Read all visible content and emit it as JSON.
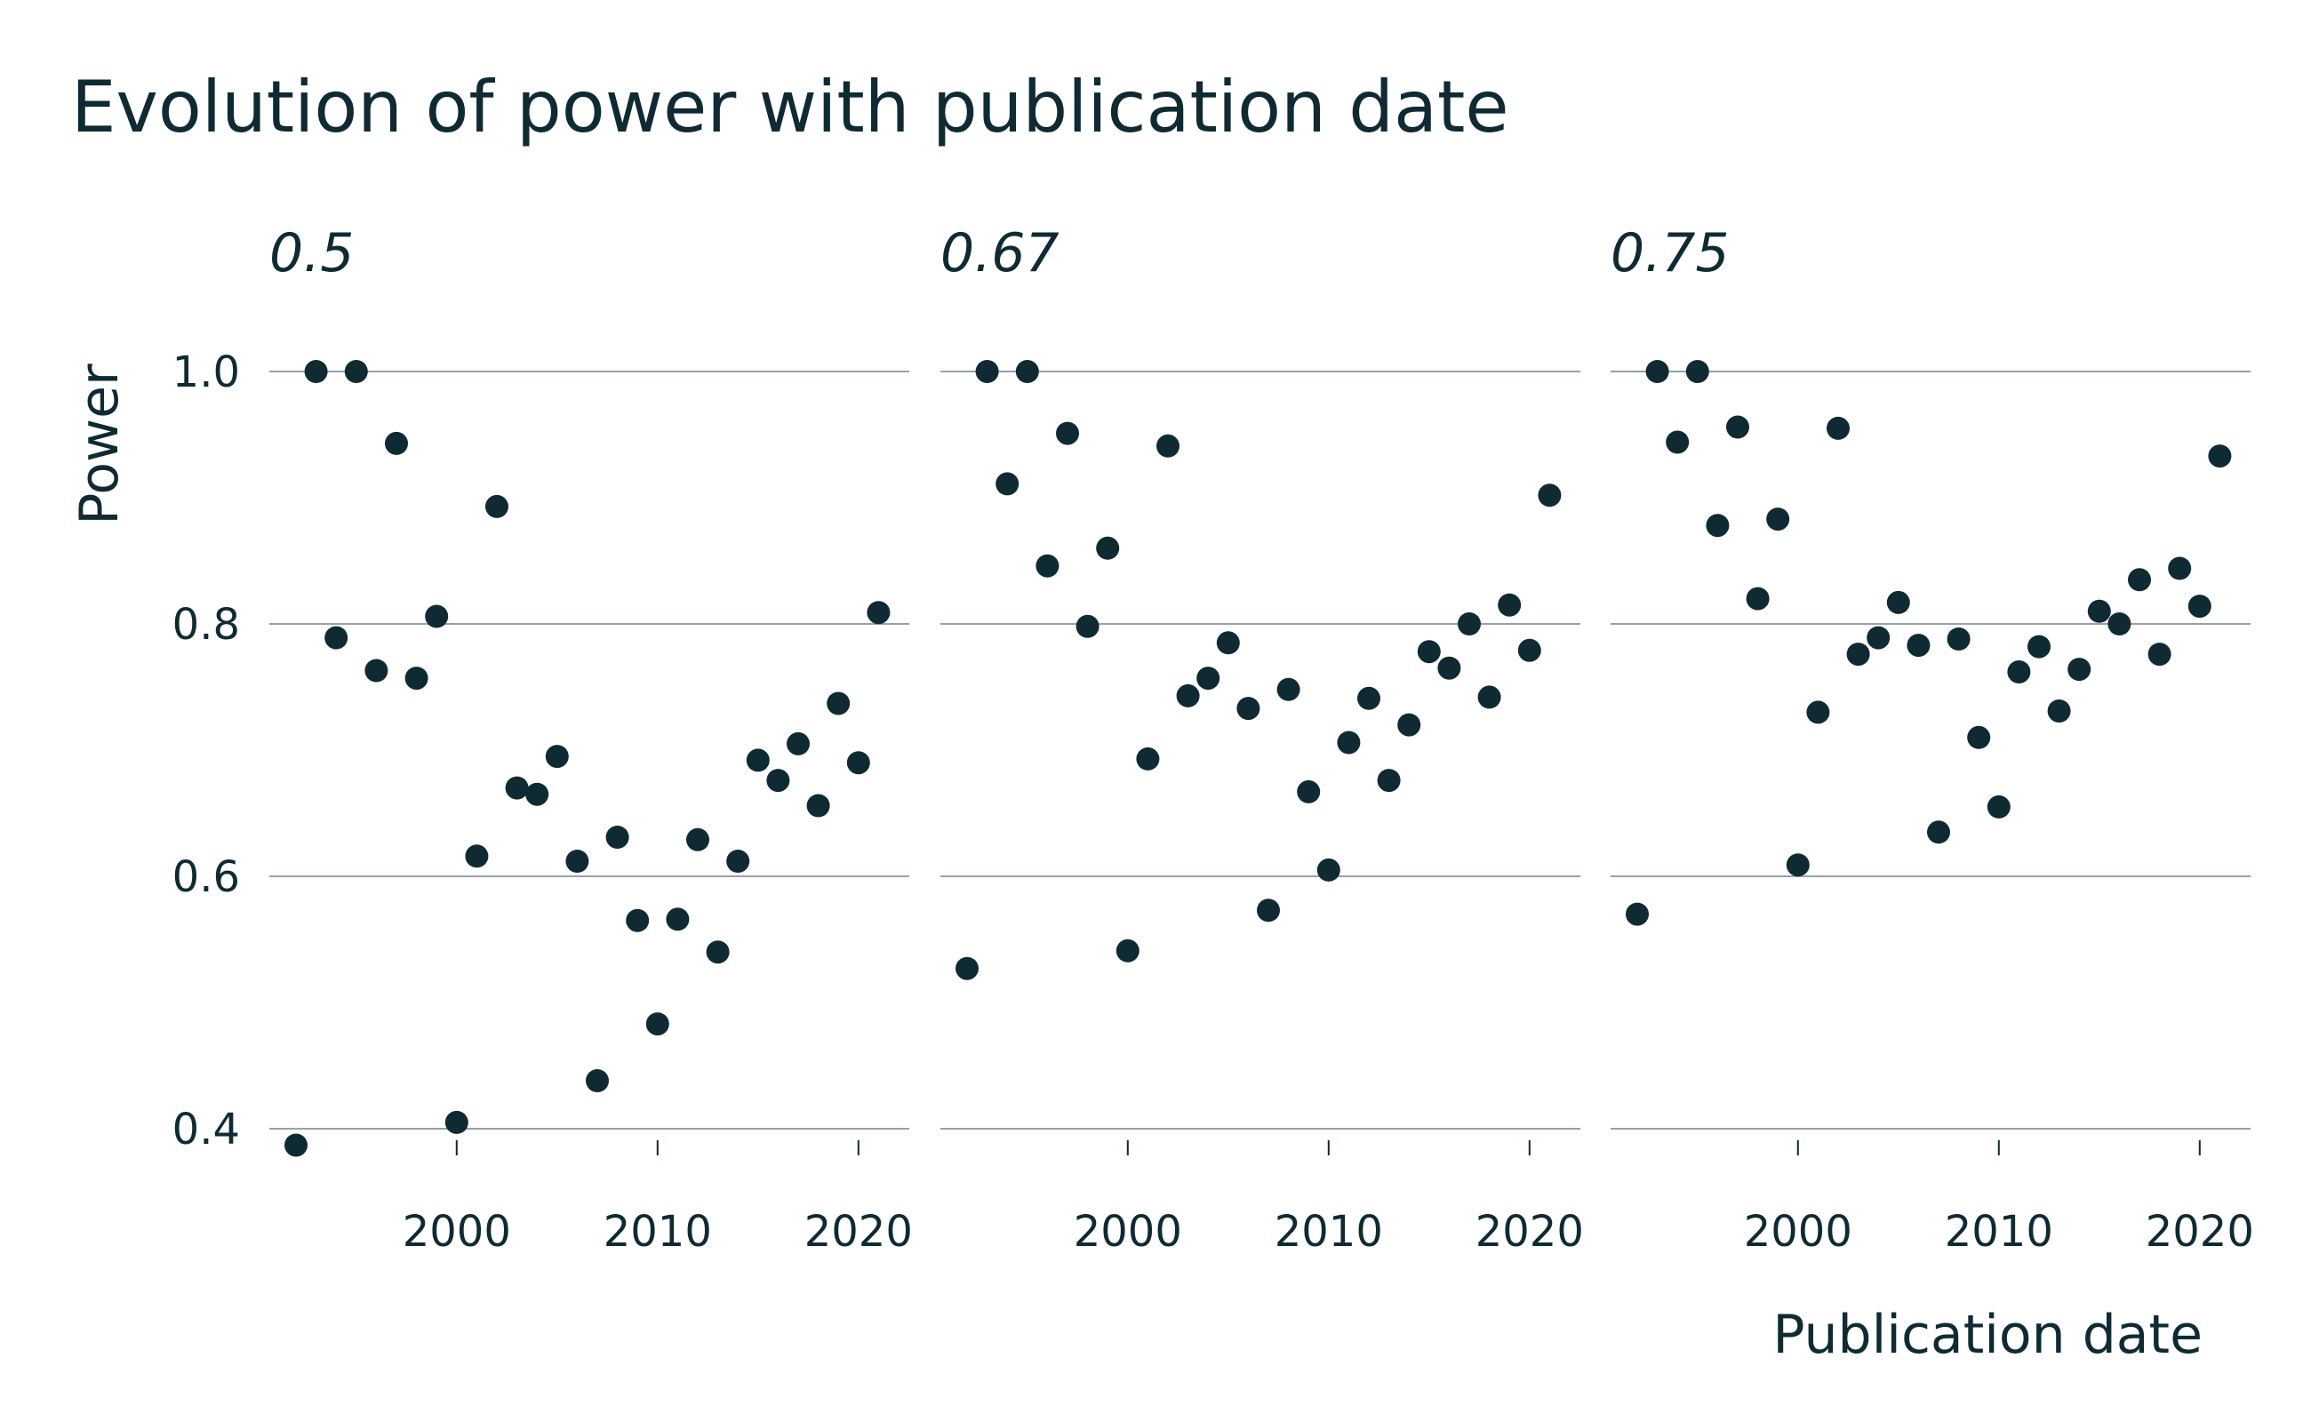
{
  "chart_data": {
    "type": "scatter",
    "title": "Evolution of power with publication date",
    "xlabel": "Publication date",
    "ylabel": "Power",
    "xlim": [
      1992,
      2022
    ],
    "ylim": [
      0.36,
      1.02
    ],
    "x_ticks": [
      "2000",
      "2010",
      "2020"
    ],
    "y_ticks": [
      "0.4",
      "0.6",
      "0.8",
      "1.0"
    ],
    "grid": "horizontal",
    "legend": "none",
    "point_color": "#0f2a33",
    "grid_color": "#97a2a6",
    "facets": [
      {
        "label": "0.5",
        "points": [
          {
            "x": 1992,
            "y": 0.387
          },
          {
            "x": 1993,
            "y": 1.0
          },
          {
            "x": 1994,
            "y": 0.789
          },
          {
            "x": 1995,
            "y": 1.0
          },
          {
            "x": 1996,
            "y": 0.763
          },
          {
            "x": 1997,
            "y": 0.943
          },
          {
            "x": 1998,
            "y": 0.757
          },
          {
            "x": 1999,
            "y": 0.806
          },
          {
            "x": 2000,
            "y": 0.405
          },
          {
            "x": 2001,
            "y": 0.616
          },
          {
            "x": 2002,
            "y": 0.893
          },
          {
            "x": 2003,
            "y": 0.67
          },
          {
            "x": 2004,
            "y": 0.665
          },
          {
            "x": 2005,
            "y": 0.695
          },
          {
            "x": 2006,
            "y": 0.612
          },
          {
            "x": 2007,
            "y": 0.438
          },
          {
            "x": 2008,
            "y": 0.631
          },
          {
            "x": 2009,
            "y": 0.565
          },
          {
            "x": 2010,
            "y": 0.483
          },
          {
            "x": 2011,
            "y": 0.566
          },
          {
            "x": 2012,
            "y": 0.629
          },
          {
            "x": 2013,
            "y": 0.54
          },
          {
            "x": 2014,
            "y": 0.612
          },
          {
            "x": 2015,
            "y": 0.692
          },
          {
            "x": 2016,
            "y": 0.676
          },
          {
            "x": 2017,
            "y": 0.705
          },
          {
            "x": 2018,
            "y": 0.656
          },
          {
            "x": 2019,
            "y": 0.737
          },
          {
            "x": 2020,
            "y": 0.69
          },
          {
            "x": 2021,
            "y": 0.809
          }
        ]
      },
      {
        "label": "0.67",
        "points": [
          {
            "x": 1992,
            "y": 0.527
          },
          {
            "x": 1993,
            "y": 1.0
          },
          {
            "x": 1994,
            "y": 0.911
          },
          {
            "x": 1995,
            "y": 1.0
          },
          {
            "x": 1996,
            "y": 0.846
          },
          {
            "x": 1997,
            "y": 0.951
          },
          {
            "x": 1998,
            "y": 0.798
          },
          {
            "x": 1999,
            "y": 0.86
          },
          {
            "x": 2000,
            "y": 0.541
          },
          {
            "x": 2001,
            "y": 0.693
          },
          {
            "x": 2002,
            "y": 0.941
          },
          {
            "x": 2003,
            "y": 0.743
          },
          {
            "x": 2004,
            "y": 0.757
          },
          {
            "x": 2005,
            "y": 0.785
          },
          {
            "x": 2006,
            "y": 0.733
          },
          {
            "x": 2007,
            "y": 0.573
          },
          {
            "x": 2008,
            "y": 0.748
          },
          {
            "x": 2009,
            "y": 0.667
          },
          {
            "x": 2010,
            "y": 0.605
          },
          {
            "x": 2011,
            "y": 0.706
          },
          {
            "x": 2012,
            "y": 0.741
          },
          {
            "x": 2013,
            "y": 0.676
          },
          {
            "x": 2014,
            "y": 0.72
          },
          {
            "x": 2015,
            "y": 0.778
          },
          {
            "x": 2016,
            "y": 0.765
          },
          {
            "x": 2017,
            "y": 0.8
          },
          {
            "x": 2018,
            "y": 0.742
          },
          {
            "x": 2019,
            "y": 0.815
          },
          {
            "x": 2020,
            "y": 0.779
          },
          {
            "x": 2021,
            "y": 0.902
          }
        ]
      },
      {
        "label": "0.75",
        "points": [
          {
            "x": 1992,
            "y": 0.57
          },
          {
            "x": 1993,
            "y": 1.0
          },
          {
            "x": 1994,
            "y": 0.944
          },
          {
            "x": 1995,
            "y": 1.0
          },
          {
            "x": 1996,
            "y": 0.878
          },
          {
            "x": 1997,
            "y": 0.956
          },
          {
            "x": 1998,
            "y": 0.82
          },
          {
            "x": 1999,
            "y": 0.883
          },
          {
            "x": 2000,
            "y": 0.609
          },
          {
            "x": 2001,
            "y": 0.73
          },
          {
            "x": 2002,
            "y": 0.955
          },
          {
            "x": 2003,
            "y": 0.776
          },
          {
            "x": 2004,
            "y": 0.789
          },
          {
            "x": 2005,
            "y": 0.817
          },
          {
            "x": 2006,
            "y": 0.783
          },
          {
            "x": 2007,
            "y": 0.635
          },
          {
            "x": 2008,
            "y": 0.788
          },
          {
            "x": 2009,
            "y": 0.71
          },
          {
            "x": 2010,
            "y": 0.655
          },
          {
            "x": 2011,
            "y": 0.762
          },
          {
            "x": 2012,
            "y": 0.782
          },
          {
            "x": 2013,
            "y": 0.731
          },
          {
            "x": 2014,
            "y": 0.764
          },
          {
            "x": 2015,
            "y": 0.81
          },
          {
            "x": 2016,
            "y": 0.8
          },
          {
            "x": 2017,
            "y": 0.835
          },
          {
            "x": 2018,
            "y": 0.776
          },
          {
            "x": 2019,
            "y": 0.844
          },
          {
            "x": 2020,
            "y": 0.814
          },
          {
            "x": 2021,
            "y": 0.933
          }
        ]
      }
    ]
  }
}
